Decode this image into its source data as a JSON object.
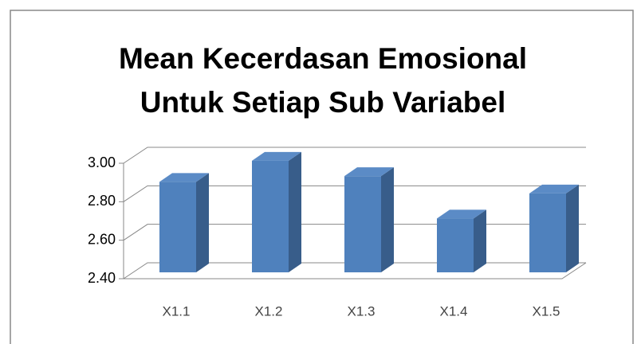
{
  "chart_data": {
    "type": "bar3d",
    "title": [
      "Mean Kecerdasan Emosional",
      "Untuk Setiap Sub Variabel"
    ],
    "categories": [
      "X1.1",
      "X1.2",
      "X1.3",
      "X1.4",
      "X1.5"
    ],
    "values": [
      2.87,
      2.98,
      2.9,
      2.68,
      2.81
    ],
    "color": "#4f81bd",
    "ylim": [
      2.4,
      3.0
    ],
    "yticks": [
      {
        "value": 2.4,
        "label": "2.40"
      },
      {
        "value": 2.6,
        "label": "2.60"
      },
      {
        "value": 2.8,
        "label": "2.80"
      },
      {
        "value": 3.0,
        "label": "3.00"
      }
    ],
    "grid": true
  }
}
